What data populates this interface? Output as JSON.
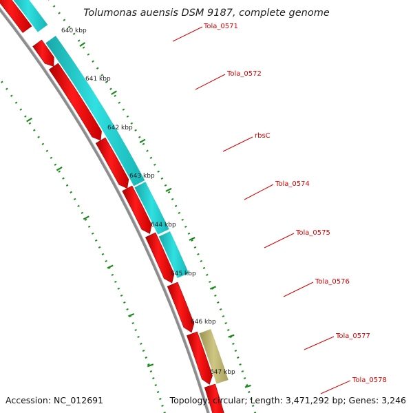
{
  "header": {
    "organism": "Tolumonas auensis DSM 9187, complete genome"
  },
  "footer": {
    "accession": "Accession: NC_012691",
    "summary": "Topology: circular; Length: 3,471,292 bp; Genes: 3,246"
  },
  "tick_labels": [
    "640 kbp",
    "641 kbp",
    "642 kbp",
    "643 kbp",
    "644 kbp",
    "645 kbp",
    "646 kbp",
    "647 kbp"
  ],
  "gene_labels": [
    "Tola_0571",
    "Tola_0572",
    "rbsC",
    "Tola_0574",
    "Tola_0575",
    "Tola_0576",
    "Tola_0577",
    "Tola_0578"
  ],
  "colors": {
    "cds": "#ff0000",
    "cds_dark": "#a00000",
    "blast_hit": "#20d0d0",
    "blast_hit_dark": "#108c8c",
    "blast_partial": "#c0b870",
    "backbone": "#8c8c8c",
    "tick": "#1c8a1c",
    "label": "#d40000"
  }
}
